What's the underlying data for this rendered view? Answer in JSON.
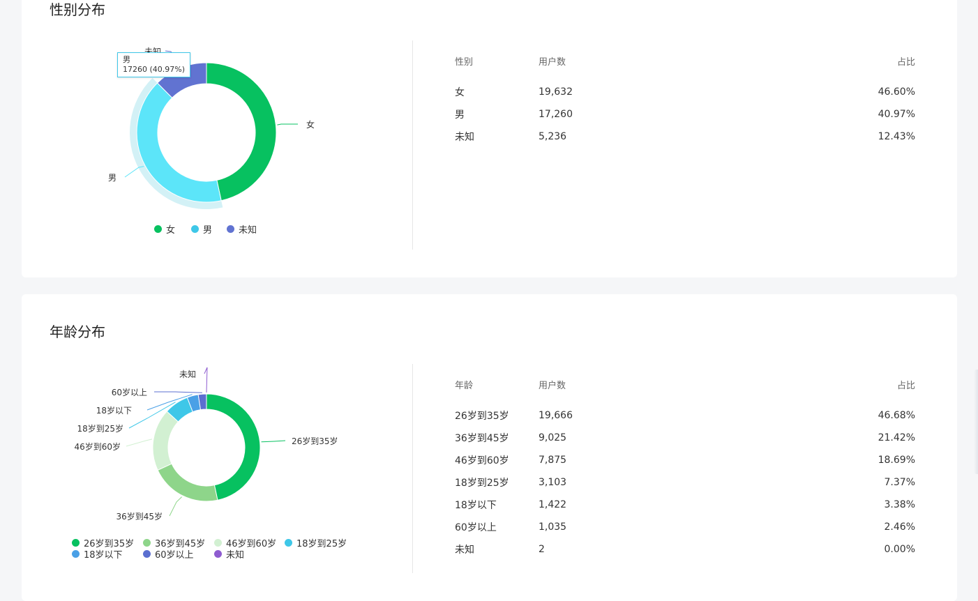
{
  "gender": {
    "title": "性别分布",
    "tooltip": {
      "name": "男",
      "value": "17260 (40.97%)"
    },
    "columns": {
      "name": "性别",
      "count": "用户数",
      "share": "占比"
    },
    "rows": [
      {
        "name": "女",
        "count": "19,632",
        "share": "46.60%",
        "color": "#07c160"
      },
      {
        "name": "男",
        "count": "17,260",
        "share": "40.97%",
        "color": "#5ce5f9"
      },
      {
        "name": "未知",
        "count": "5,236",
        "share": "12.43%",
        "color": "#6173d1"
      }
    ],
    "legend": [
      {
        "name": "女",
        "color": "#07c160"
      },
      {
        "name": "男",
        "color": "#3ec7e8"
      },
      {
        "name": "未知",
        "color": "#6173d1"
      }
    ],
    "chart_data": {
      "type": "pie",
      "categories": [
        "女",
        "男",
        "未知"
      ],
      "values": [
        19632,
        17260,
        5236
      ],
      "colors": [
        "#07c160",
        "#5ce5f9",
        "#6173d1"
      ],
      "highlighted": "男",
      "legend_position": "bottom"
    }
  },
  "age": {
    "title": "年龄分布",
    "columns": {
      "name": "年龄",
      "count": "用户数",
      "share": "占比"
    },
    "rows": [
      {
        "name": "26岁到35岁",
        "count": "19,666",
        "share": "46.68%"
      },
      {
        "name": "36岁到45岁",
        "count": "9,025",
        "share": "21.42%"
      },
      {
        "name": "46岁到60岁",
        "count": "7,875",
        "share": "18.69%"
      },
      {
        "name": "18岁到25岁",
        "count": "3,103",
        "share": "7.37%"
      },
      {
        "name": "18岁以下",
        "count": "1,422",
        "share": "3.38%"
      },
      {
        "name": "60岁以上",
        "count": "1,035",
        "share": "2.46%"
      },
      {
        "name": "未知",
        "count": "2",
        "share": "0.00%"
      }
    ],
    "legend": [
      {
        "name": "26岁到35岁",
        "color": "#07c160"
      },
      {
        "name": "36岁到45岁",
        "color": "#8ed58a"
      },
      {
        "name": "46岁到60岁",
        "color": "#d2f0d2"
      },
      {
        "name": "18岁到25岁",
        "color": "#3ec7e8"
      },
      {
        "name": "18岁以下",
        "color": "#4aa0e6"
      },
      {
        "name": "60岁以上",
        "color": "#5b6fd0"
      },
      {
        "name": "未知",
        "color": "#8e5cd0"
      }
    ],
    "chart_data": {
      "type": "pie",
      "categories": [
        "26岁到35岁",
        "36岁到45岁",
        "46岁到60岁",
        "18岁到25岁",
        "18岁以下",
        "60岁以上",
        "未知"
      ],
      "values": [
        19666,
        9025,
        7875,
        3103,
        1422,
        1035,
        2
      ],
      "colors": [
        "#07c160",
        "#8ed58a",
        "#d2f0d2",
        "#3ec7e8",
        "#4aa0e6",
        "#5b6fd0",
        "#8e5cd0"
      ],
      "legend_position": "bottom"
    }
  }
}
